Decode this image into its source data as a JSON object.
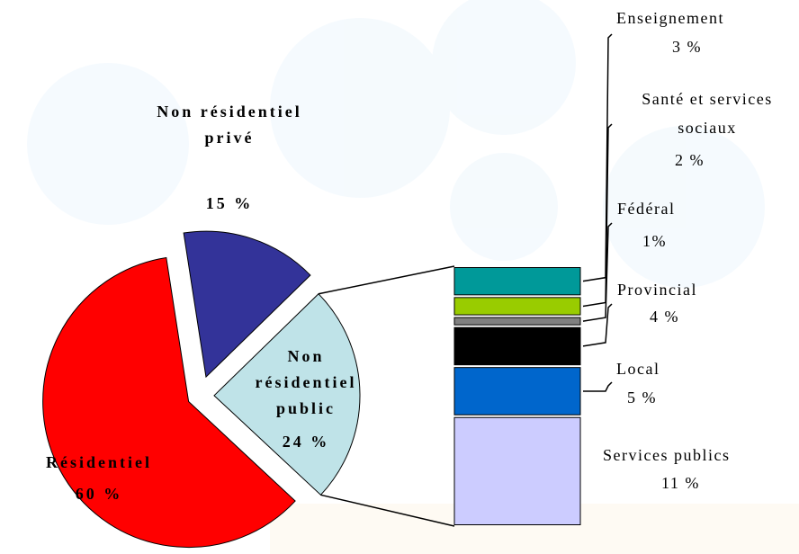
{
  "chart_data": {
    "type": "pie-of-bar",
    "categories": [
      "Résidentiel",
      "Non résidentiel privé",
      "Non résidentiel public"
    ],
    "values": [
      60,
      15,
      24
    ],
    "value_labels": [
      "60 %",
      "15 %",
      "24 %"
    ],
    "colors": [
      "#ff0000",
      "#333399",
      "#bfe3e8"
    ],
    "bar_of_pie": {
      "categories": [
        "Services publics",
        "Local",
        "Provincial",
        "Fédéral",
        "Santé et services sociaux",
        "Enseignement"
      ],
      "values": [
        11,
        5,
        4,
        1,
        2,
        3
      ],
      "value_labels": [
        "11 %",
        "5 %",
        "4 %",
        "1%",
        "2 %",
        "3 %"
      ],
      "colors": [
        "#ccccff",
        "#0066cc",
        "#000000",
        "#808080",
        "#99cc00",
        "#009999"
      ]
    }
  }
}
